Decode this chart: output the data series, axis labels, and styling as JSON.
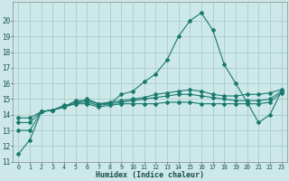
{
  "xlabel": "Humidex (Indice chaleur)",
  "background_color": "#cce8e8",
  "grid_color": "#aacccc",
  "line_color": "#1a7a6e",
  "x_values": [
    0,
    1,
    2,
    3,
    4,
    5,
    6,
    7,
    8,
    9,
    10,
    11,
    12,
    13,
    14,
    15,
    16,
    17,
    18,
    19,
    20,
    21,
    22,
    23
  ],
  "series": {
    "line1": [
      11.5,
      12.4,
      14.2,
      14.3,
      14.6,
      14.7,
      15.0,
      14.7,
      14.7,
      15.3,
      15.5,
      16.1,
      16.6,
      17.5,
      19.0,
      20.0,
      20.5,
      19.4,
      17.2,
      16.0,
      14.8,
      13.5,
      14.0,
      15.5
    ],
    "line2": [
      13.0,
      13.0,
      14.2,
      14.3,
      14.5,
      14.9,
      14.9,
      14.7,
      14.8,
      14.9,
      15.0,
      15.1,
      15.3,
      15.4,
      15.5,
      15.6,
      15.5,
      15.3,
      15.2,
      15.2,
      15.3,
      15.3,
      15.4,
      15.6
    ],
    "line3": [
      13.5,
      13.5,
      14.2,
      14.3,
      14.5,
      14.8,
      14.8,
      14.6,
      14.7,
      14.8,
      14.9,
      15.0,
      15.1,
      15.2,
      15.3,
      15.3,
      15.2,
      15.1,
      15.0,
      14.9,
      14.9,
      14.9,
      15.0,
      15.5
    ],
    "line4": [
      13.8,
      13.8,
      14.2,
      14.3,
      14.5,
      14.7,
      14.7,
      14.5,
      14.6,
      14.7,
      14.7,
      14.7,
      14.7,
      14.8,
      14.8,
      14.8,
      14.7,
      14.7,
      14.7,
      14.7,
      14.7,
      14.7,
      14.8,
      15.4
    ]
  },
  "ylim": [
    11,
    21
  ],
  "yticks": [
    11,
    12,
    13,
    14,
    15,
    16,
    17,
    18,
    19,
    20
  ],
  "xticks": [
    0,
    1,
    2,
    3,
    4,
    5,
    6,
    7,
    8,
    9,
    10,
    11,
    12,
    13,
    14,
    15,
    16,
    17,
    18,
    19,
    20,
    21,
    22,
    23
  ],
  "ytick_fontsize": 5.5,
  "xtick_fontsize": 4.8,
  "xlabel_fontsize": 6.0,
  "linewidth": 0.8,
  "markersize": 2.0
}
